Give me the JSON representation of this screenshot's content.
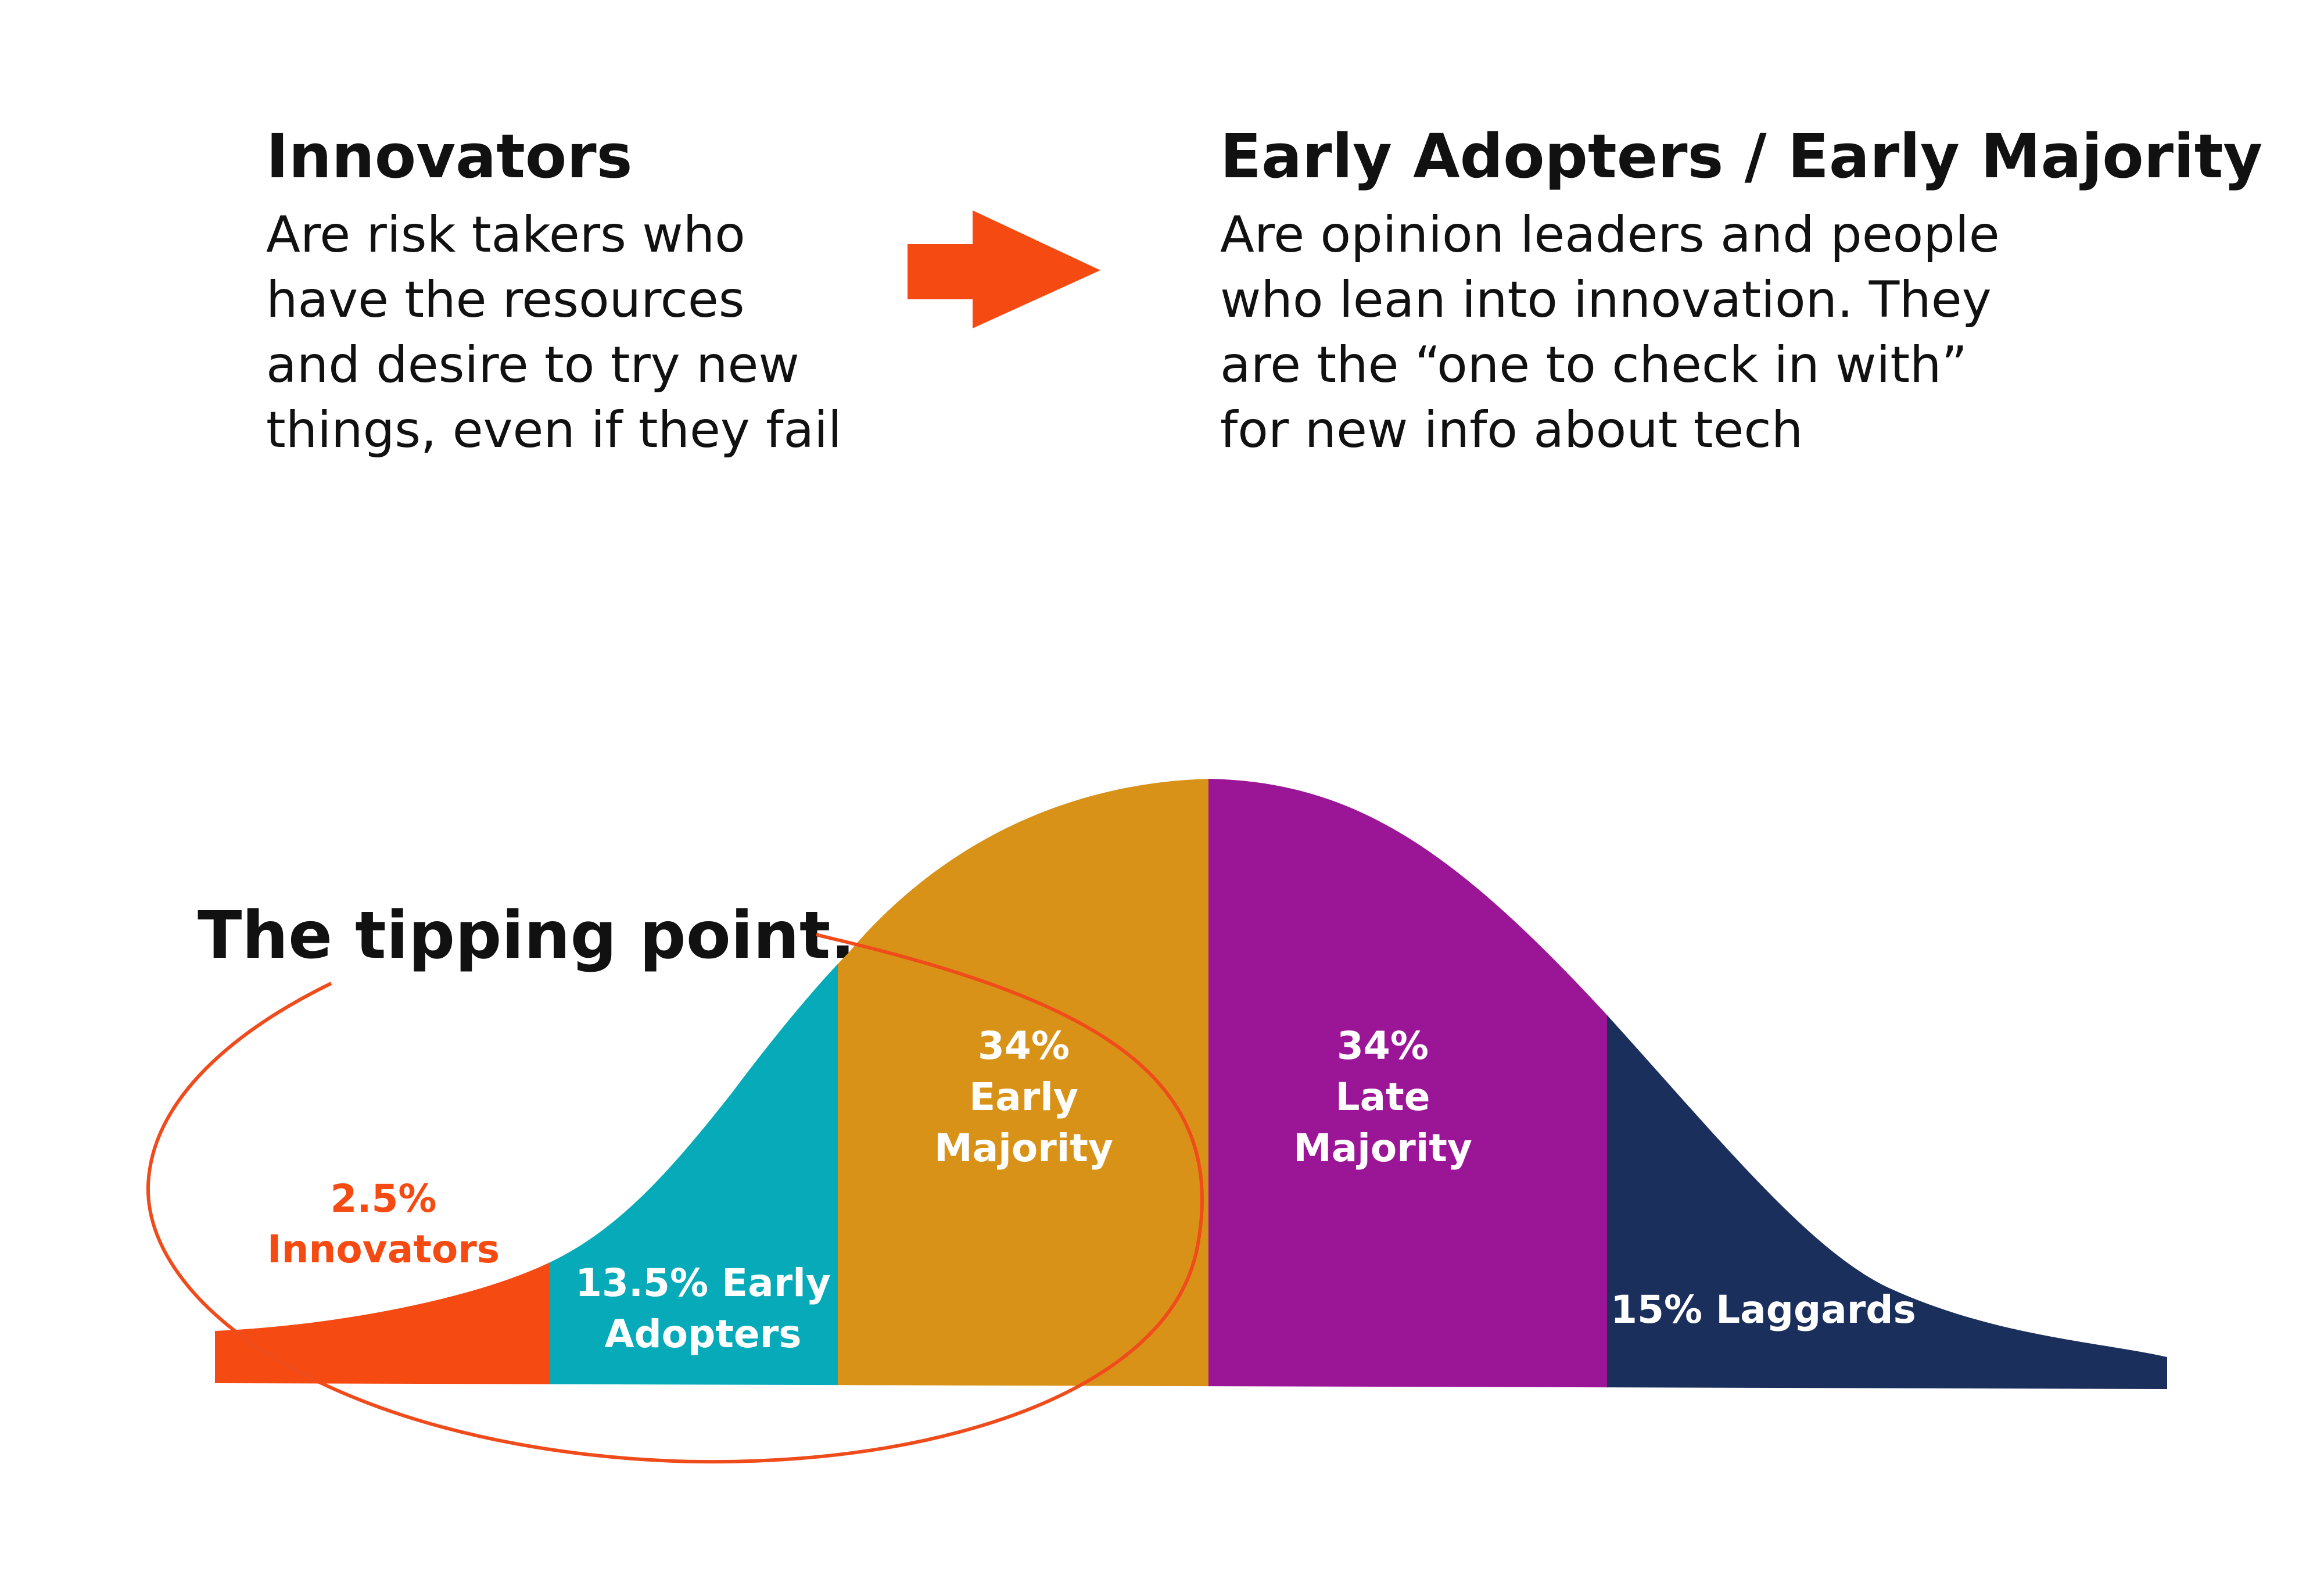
{
  "innovators_card": {
    "title": "Innovators",
    "lines": [
      "Are risk takers who",
      "have the resources",
      "and desire to try new",
      "things, even if they fail"
    ]
  },
  "early_card": {
    "title": "Early Adopters / Early Majority",
    "lines": [
      "Are opinion leaders and people",
      "who lean into innovation. They",
      "are the “one to check in with”",
      "for new info about tech"
    ]
  },
  "arrow": {
    "icon": "right-arrow-icon",
    "color": "#f54a12"
  },
  "tipping_point": {
    "label": "The tipping point...",
    "icon": "ellipse-outline-icon",
    "color": "#f04b1a"
  },
  "chart_data": {
    "type": "area",
    "title": "",
    "xlabel": "",
    "ylabel": "",
    "categories": [
      "Innovators",
      "Early Adopters",
      "Early Majority",
      "Late Majority",
      "Laggards"
    ],
    "values": [
      2.5,
      13.5,
      34,
      34,
      15
    ],
    "unit": "%",
    "colors": [
      "#f54a12",
      "#06aab8",
      "#d89218",
      "#9b1696",
      "#1b2f5c"
    ],
    "segments": [
      {
        "name": "Innovators",
        "percent": "2.5%",
        "label_lines": [
          "2.5%",
          "Innovators"
        ],
        "color": "#f54a12",
        "label_color": "#f54a12"
      },
      {
        "name": "Early Adopters",
        "percent": "13.5%",
        "label_lines": [
          "13.5% Early",
          "Adopters"
        ],
        "color": "#06aab8",
        "label_color": "#ffffff"
      },
      {
        "name": "Early Majority",
        "percent": "34%",
        "label_lines": [
          "34%",
          "Early",
          "Majority"
        ],
        "color": "#d89218",
        "label_color": "#ffffff"
      },
      {
        "name": "Late Majority",
        "percent": "34%",
        "label_lines": [
          "34%",
          "Late",
          "Majority"
        ],
        "color": "#9b1696",
        "label_color": "#ffffff"
      },
      {
        "name": "Laggards",
        "percent": "15%",
        "label_lines": [
          "15% Laggards"
        ],
        "color": "#1b2f5c",
        "label_color": "#ffffff"
      }
    ]
  }
}
